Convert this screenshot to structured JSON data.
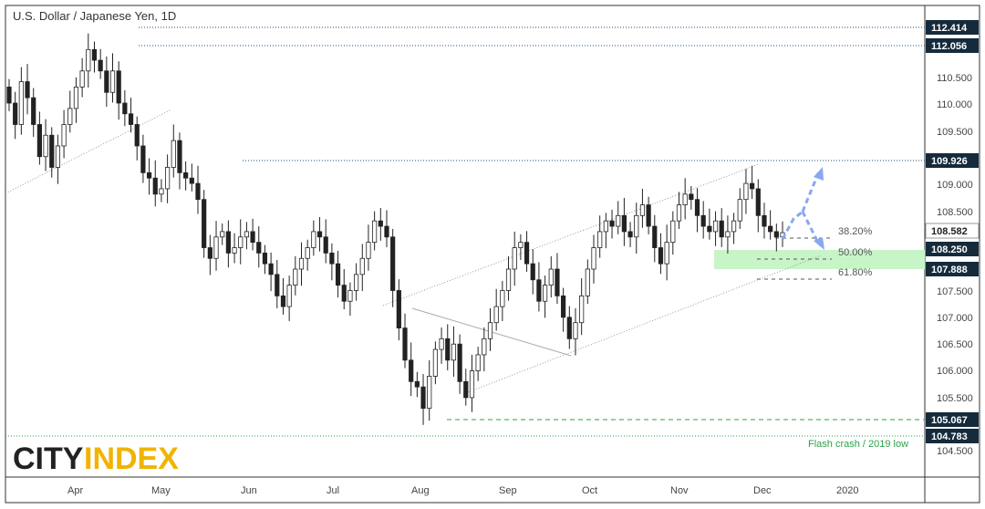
{
  "chart_data": {
    "type": "candlestick",
    "title": "U.S. Dollar / Japanese Yen, 1D",
    "ylim": [
      104.2,
      112.8
    ],
    "y_ticks": [
      "110.500",
      "110.000",
      "109.500",
      "109.000",
      "108.500",
      "107.500",
      "107.000",
      "106.500",
      "106.000",
      "105.500",
      "104.500"
    ],
    "x_ticks": [
      "Apr",
      "May",
      "Jun",
      "Jul",
      "Aug",
      "Sep",
      "Oct",
      "Nov",
      "Dec",
      "2020"
    ],
    "price_labels": [
      {
        "value": "112.414",
        "color": "#152b3c"
      },
      {
        "value": "112.056",
        "color": "#152b3c"
      },
      {
        "value": "109.926",
        "color": "#152b3c"
      },
      {
        "value": "108.582",
        "color": "#ffffff"
      },
      {
        "value": "108.250",
        "color": "#152b3c"
      },
      {
        "value": "107.888",
        "color": "#152b3c"
      },
      {
        "value": "105.067",
        "color": "#152b3c"
      },
      {
        "value": "104.783",
        "color": "#152b3c"
      }
    ],
    "fib_levels": [
      {
        "label": "38.20%",
        "value": 108.44
      },
      {
        "label": "50.00%",
        "value": 108.07
      },
      {
        "label": "61.80%",
        "value": 107.69
      }
    ],
    "zone": {
      "low": 107.888,
      "high": 108.25,
      "color": "#c8f5c8"
    },
    "annotation": "Flash crash / 2019 low",
    "close_series_approx": [
      111.0,
      110.6,
      111.4,
      111.1,
      110.6,
      110.0,
      110.4,
      109.8,
      110.2,
      110.6,
      110.9,
      111.3,
      111.6,
      112.0,
      111.8,
      111.6,
      111.2,
      111.6,
      111.0,
      110.8,
      110.6,
      110.2,
      109.7,
      109.6,
      109.3,
      109.4,
      109.8,
      110.3,
      109.7,
      109.6,
      109.5,
      109.2,
      108.3,
      108.1,
      108.5,
      108.6,
      108.2,
      108.3,
      108.5,
      108.6,
      108.4,
      108.2,
      108.0,
      107.8,
      107.4,
      107.2,
      107.6,
      107.9,
      108.1,
      108.3,
      108.6,
      108.5,
      108.2,
      108.0,
      107.6,
      107.3,
      107.5,
      107.8,
      108.1,
      108.4,
      108.8,
      108.7,
      108.5,
      107.5,
      106.8,
      106.2,
      105.8,
      105.7,
      105.3,
      105.9,
      106.4,
      106.6,
      106.2,
      106.5,
      105.8,
      105.5,
      106.0,
      106.3,
      106.6,
      106.9,
      107.2,
      107.5,
      107.9,
      108.3,
      108.4,
      108.0,
      107.7,
      107.3,
      107.6,
      107.9,
      107.4,
      107.0,
      106.6,
      106.9,
      107.4,
      107.9,
      108.3,
      108.6,
      108.8,
      108.7,
      108.9,
      108.6,
      108.5,
      108.9,
      109.1,
      108.7,
      108.3,
      108.0,
      108.4,
      108.8,
      109.1,
      109.3,
      109.2,
      108.9,
      108.7,
      108.6,
      108.8,
      108.5,
      108.6,
      108.8,
      109.2,
      109.5,
      109.4,
      108.9,
      108.7,
      108.6,
      108.5,
      108.58
    ]
  }
}
